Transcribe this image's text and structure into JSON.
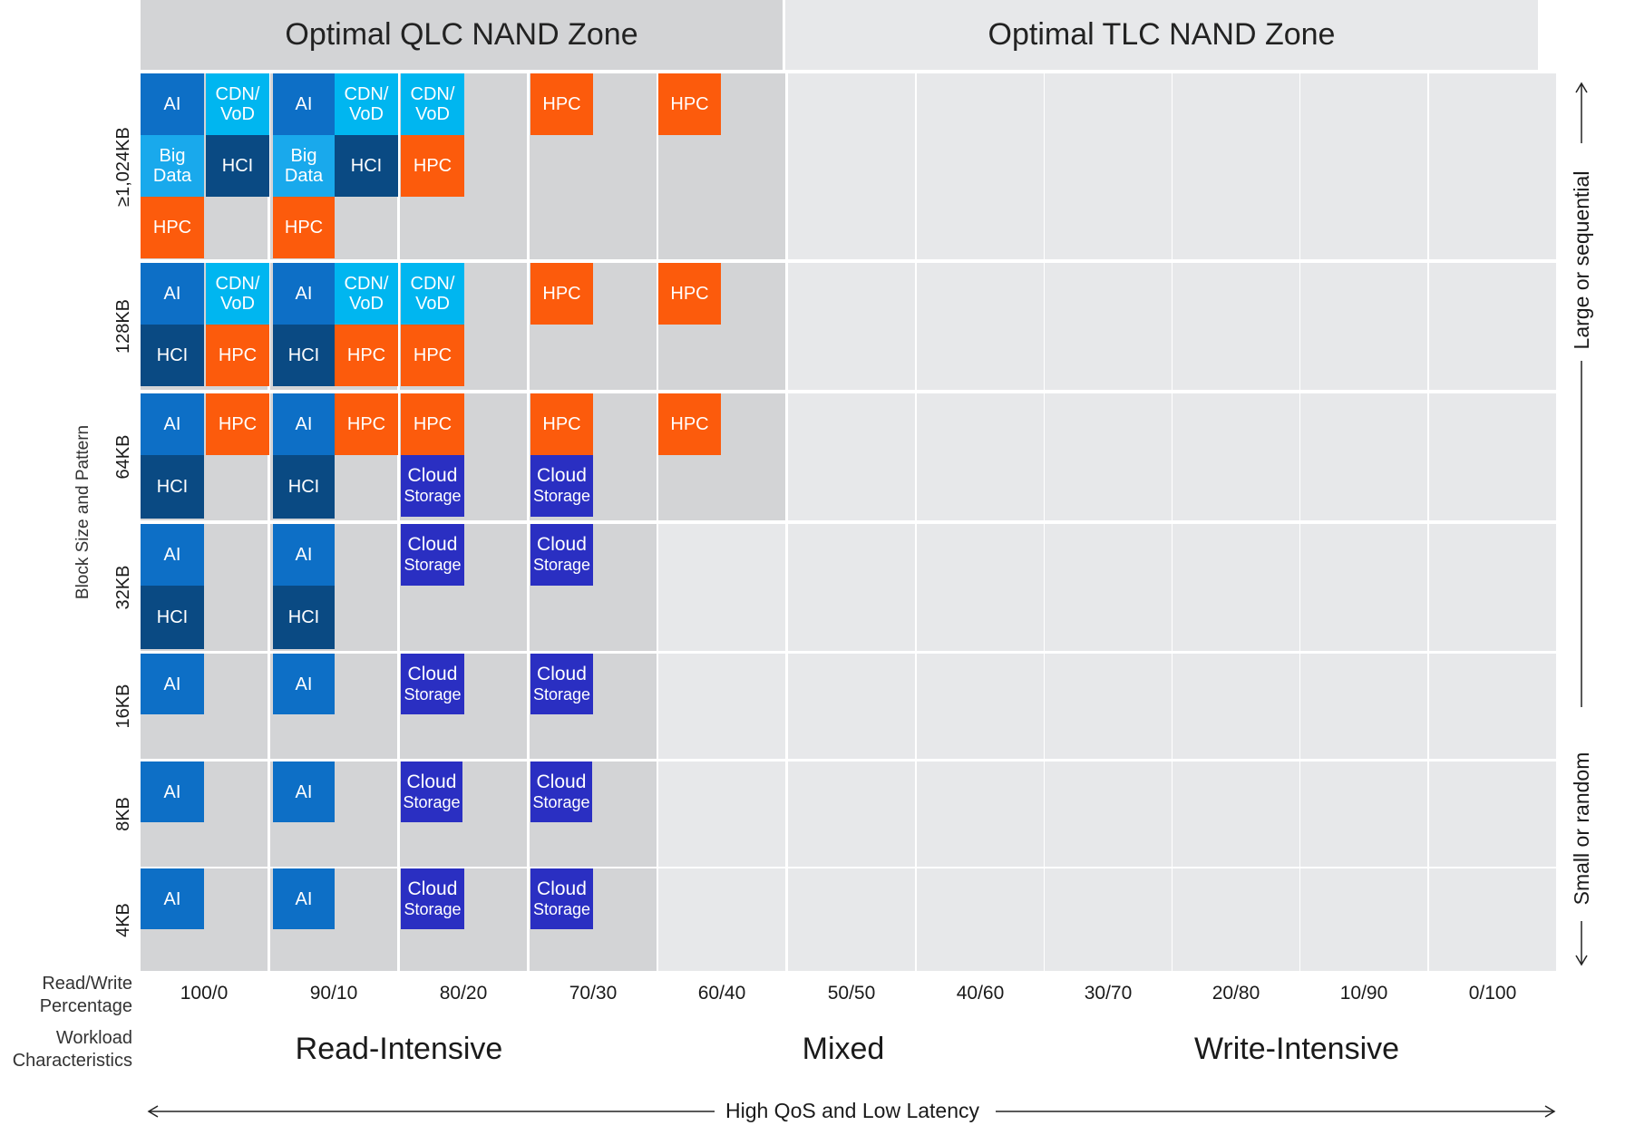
{
  "zones": {
    "qlc": "Optimal QLC NAND Zone",
    "tlc": "Optimal TLC NAND Zone"
  },
  "y_axis_title": "Block Size and Pattern",
  "block_sizes": [
    "≥1,024KB",
    "128KB",
    "64KB",
    "32KB",
    "16KB",
    "8KB",
    "4KB"
  ],
  "rw_label": "Read/Write Percentage",
  "rw_percentages": [
    "100/0",
    "90/10",
    "80/20",
    "70/30",
    "60/40",
    "50/50",
    "40/60",
    "30/70",
    "20/80",
    "10/90",
    "0/100"
  ],
  "workload_label": "Workload Characteristics",
  "workload": {
    "read": "Read-Intensive",
    "mixed": "Mixed",
    "write": "Write-Intensive"
  },
  "right_axis": {
    "top": "Large or sequential",
    "bottom": "Small or random"
  },
  "bottom_axis": "High QoS and Low Latency",
  "tiles": {
    "ai": "AI",
    "cdn_line1": "CDN/",
    "cdn_line2": "VoD",
    "big_line1": "Big",
    "big_line2": "Data",
    "hci": "HCI",
    "hpc": "HPC",
    "cloud_line1": "Cloud",
    "cloud_line2": "Storage"
  },
  "colors": {
    "ai": "#0d6fc6",
    "cdn_vod": "#00b6f0",
    "hci": "#0a4a83",
    "hpc": "#fc5b0c",
    "cloud_storage": "#2a2fc2",
    "qlc_zone": "#d3d4d6",
    "tlc_zone": "#e5e6e8"
  }
}
